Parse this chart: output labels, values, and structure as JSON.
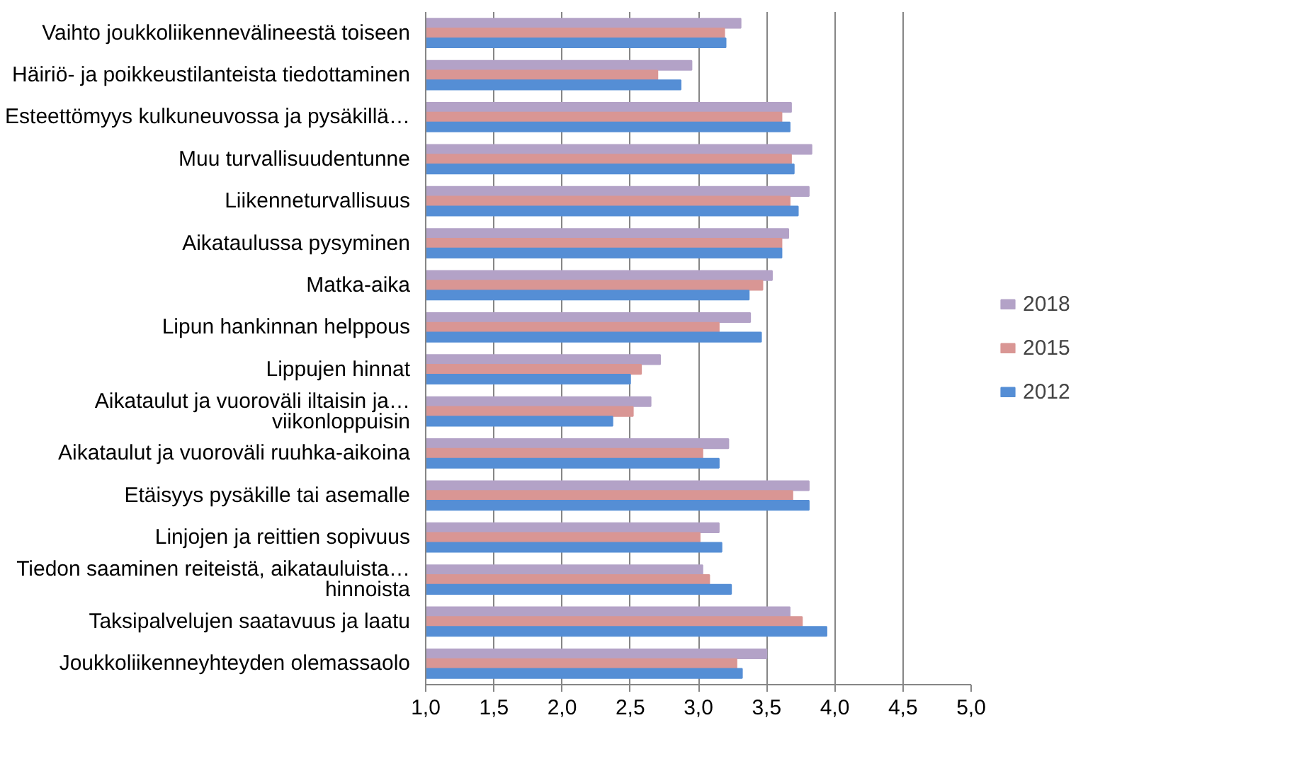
{
  "chart_data": {
    "type": "bar",
    "orientation": "horizontal",
    "categories": [
      "Vaihto joukkoliikennevälineestä toiseen",
      "Häiriö- ja poikkeustilanteista tiedottaminen",
      "Esteettömyys kulkuneuvossa ja pysäkillä…",
      "Muu turvallisuudentunne",
      "Liikenneturvallisuus",
      "Aikataulussa pysyminen",
      "Matka-aika",
      "Lipun hankinnan helppous",
      "Lippujen hinnat",
      "Aikataulut ja vuoroväli iltaisin ja…\nviikonloppuisin",
      "Aikataulut ja vuoroväli ruuhka-aikoina",
      "Etäisyys pysäkille tai asemalle",
      "Linjojen ja reittien sopivuus",
      "Tiedon saaminen reiteistä, aikatauluista…\nhinnoista",
      "Taksipalvelujen saatavuus ja laatu",
      "Joukkoliikenneyhteyden olemassaolo"
    ],
    "series": [
      {
        "name": "2018",
        "color": "#b3a2c7",
        "values": [
          3.31,
          2.95,
          3.68,
          3.83,
          3.81,
          3.66,
          3.54,
          3.38,
          2.72,
          2.65,
          3.22,
          3.81,
          3.15,
          3.03,
          3.67,
          3.5
        ]
      },
      {
        "name": "2015",
        "color": "#d99694",
        "values": [
          3.19,
          2.7,
          3.61,
          3.68,
          3.67,
          3.61,
          3.47,
          3.15,
          2.58,
          2.52,
          3.03,
          3.69,
          3.01,
          3.08,
          3.76,
          3.28
        ]
      },
      {
        "name": "2012",
        "color": "#558ed5",
        "values": [
          3.2,
          2.87,
          3.67,
          3.7,
          3.73,
          3.61,
          3.37,
          3.46,
          2.5,
          2.37,
          3.15,
          3.81,
          3.17,
          3.24,
          3.94,
          3.32
        ]
      }
    ],
    "xlim": [
      1,
      5
    ],
    "xticks": [
      {
        "value": 1,
        "label": "1,0"
      },
      {
        "value": 1.5,
        "label": "1,5"
      },
      {
        "value": 2,
        "label": "2,0"
      },
      {
        "value": 2.5,
        "label": "2,5"
      },
      {
        "value": 3,
        "label": "3,0"
      },
      {
        "value": 3.5,
        "label": "3,5"
      },
      {
        "value": 4,
        "label": "4,0"
      },
      {
        "value": 4.5,
        "label": "4,5"
      },
      {
        "value": 5,
        "label": "5,0"
      }
    ],
    "grid": "x",
    "legend": "right"
  }
}
